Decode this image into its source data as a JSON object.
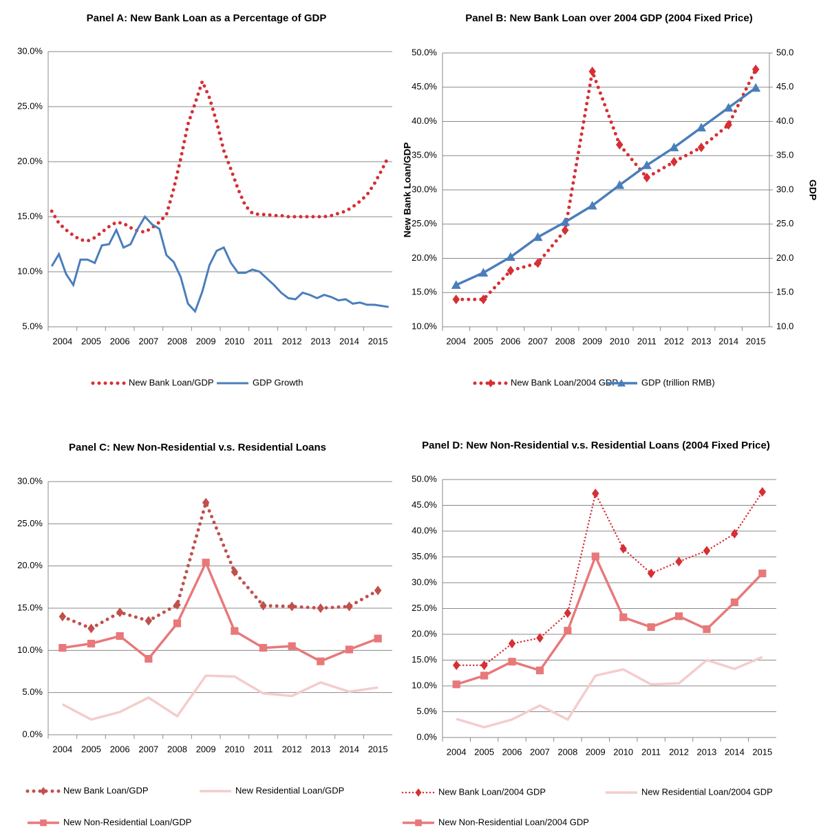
{
  "chart_data": [
    {
      "type": "line",
      "title": "Panel A: New Bank Loan as a Percentage of GDP",
      "categories": [
        "2004",
        null,
        null,
        null,
        "2005",
        null,
        null,
        null,
        "2006",
        null,
        null,
        null,
        "2007",
        null,
        null,
        null,
        "2008",
        null,
        null,
        null,
        "2009",
        null,
        null,
        null,
        "2010",
        null,
        null,
        null,
        "2011",
        null,
        null,
        null,
        "2012",
        null,
        null,
        null,
        "2013",
        null,
        null,
        null,
        "2014",
        null,
        null,
        null,
        "2015",
        null,
        null,
        null
      ],
      "series": [
        {
          "name": "New Bank Loan/GDP",
          "color": "#d62f35",
          "style": "dots",
          "marker": "none",
          "values": [
            15.5,
            14.4,
            13.8,
            13.3,
            12.9,
            12.8,
            13.1,
            13.6,
            14.1,
            14.5,
            14.4,
            14.0,
            13.7,
            13.6,
            14.0,
            14.5,
            15.2,
            17.5,
            20.3,
            23.4,
            25.3,
            27.3,
            25.8,
            23.6,
            21.0,
            19.3,
            17.5,
            16.0,
            15.3,
            15.2,
            15.2,
            15.1,
            15.1,
            15.0,
            15.0,
            15.0,
            15.0,
            15.0,
            15.0,
            15.1,
            15.3,
            15.5,
            15.9,
            16.4,
            17.0,
            18.0,
            19.2,
            20.5
          ]
        },
        {
          "name": "GDP Growth",
          "color": "#4a7ebb",
          "style": "solid",
          "marker": "none",
          "values": [
            10.5,
            11.6,
            9.8,
            8.8,
            11.1,
            11.1,
            10.8,
            12.4,
            12.5,
            13.8,
            12.2,
            12.5,
            13.9,
            15.0,
            14.3,
            13.9,
            11.5,
            10.9,
            9.5,
            7.1,
            6.4,
            8.2,
            10.6,
            11.9,
            12.2,
            10.8,
            9.9,
            9.9,
            10.2,
            10.0,
            9.4,
            8.8,
            8.1,
            7.6,
            7.5,
            8.1,
            7.9,
            7.6,
            7.9,
            7.7,
            7.4,
            7.5,
            7.1,
            7.2,
            7.0,
            7.0,
            6.9,
            6.8
          ]
        }
      ],
      "ylim": [
        5,
        30
      ],
      "yticks": [
        {
          "value": 5,
          "label": "5.0%"
        },
        {
          "value": 10,
          "label": "10.0%"
        },
        {
          "value": 15,
          "label": "15.0%"
        },
        {
          "value": 20,
          "label": "20.0%"
        },
        {
          "value": 25,
          "label": "25.0%"
        },
        {
          "value": 30,
          "label": "30.0%"
        }
      ],
      "grid": true,
      "legend": "bottom"
    },
    {
      "type": "line",
      "title": "Panel B: New Bank Loan over 2004 GDP (2004 Fixed Price)",
      "ylabel": "New Bank Loan/GDP",
      "y2label": "GDP",
      "categories": [
        "2004",
        "2005",
        "2006",
        "2007",
        "2008",
        "2009",
        "2010",
        "2011",
        "2012",
        "2013",
        "2014",
        "2015"
      ],
      "series": [
        {
          "name": "New Bank Loan/2004 GDP",
          "color": "#d62f35",
          "style": "dots",
          "marker": "diamond",
          "values": [
            14.0,
            14.0,
            18.2,
            19.3,
            24.1,
            47.3,
            36.6,
            31.8,
            34.1,
            36.2,
            39.5,
            47.6
          ]
        },
        {
          "name": "GDP (trillion RMB)",
          "color": "#4a7ebb",
          "style": "thick",
          "marker": "triangle",
          "axis": "y2",
          "values": [
            16.1,
            17.9,
            20.2,
            23.1,
            25.3,
            27.7,
            30.7,
            33.6,
            36.2,
            39.1,
            42.0,
            44.9
          ]
        }
      ],
      "ylim": [
        10,
        50
      ],
      "yticks": [
        {
          "value": 10,
          "label": "10.0%"
        },
        {
          "value": 15,
          "label": "15.0%"
        },
        {
          "value": 20,
          "label": "20.0%"
        },
        {
          "value": 25,
          "label": "25.0%"
        },
        {
          "value": 30,
          "label": "30.0%"
        },
        {
          "value": 35,
          "label": "35.0%"
        },
        {
          "value": 40,
          "label": "40.0%"
        },
        {
          "value": 45,
          "label": "45.0%"
        },
        {
          "value": 50,
          "label": "50.0%"
        }
      ],
      "y2lim": [
        10,
        50
      ],
      "y2ticks": [
        {
          "value": 10,
          "label": "10.0"
        },
        {
          "value": 15,
          "label": "15.0"
        },
        {
          "value": 20,
          "label": "20.0"
        },
        {
          "value": 25,
          "label": "25.0"
        },
        {
          "value": 30,
          "label": "30.0"
        },
        {
          "value": 35,
          "label": "35.0"
        },
        {
          "value": 40,
          "label": "40.0"
        },
        {
          "value": 45,
          "label": "45.0"
        },
        {
          "value": 50,
          "label": "50.0"
        }
      ],
      "grid": true,
      "legend": "bottom"
    },
    {
      "type": "line",
      "title": "Panel C: New Non-Residential v.s. Residential Loans",
      "categories": [
        "2004",
        "2005",
        "2006",
        "2007",
        "2008",
        "2009",
        "2010",
        "2011",
        "2012",
        "2013",
        "2014",
        "2015"
      ],
      "series": [
        {
          "name": "New Bank Loan/GDP",
          "color": "#c0504d",
          "style": "dots",
          "marker": "diamond",
          "values": [
            14.0,
            12.6,
            14.5,
            13.5,
            15.4,
            27.5,
            19.3,
            15.3,
            15.2,
            15.0,
            15.2,
            17.1
          ]
        },
        {
          "name": "New Residential Loan/GDP",
          "color": "#f4cccc",
          "style": "thick",
          "marker": "none",
          "values": [
            3.6,
            1.8,
            2.7,
            4.4,
            2.2,
            7.0,
            6.9,
            4.9,
            4.6,
            6.2,
            5.1,
            5.6
          ]
        },
        {
          "name": "New Non-Residential Loan/GDP",
          "color": "#e8787a",
          "style": "thick",
          "marker": "square",
          "values": [
            10.3,
            10.8,
            11.7,
            9.0,
            13.2,
            20.4,
            12.3,
            10.3,
            10.5,
            8.7,
            10.1,
            11.4
          ]
        }
      ],
      "ylim": [
        0,
        30
      ],
      "yticks": [
        {
          "value": 0,
          "label": "0.0%"
        },
        {
          "value": 5,
          "label": "5.0%"
        },
        {
          "value": 10,
          "label": "10.0%"
        },
        {
          "value": 15,
          "label": "15.0%"
        },
        {
          "value": 20,
          "label": "20.0%"
        },
        {
          "value": 25,
          "label": "25.0%"
        },
        {
          "value": 30,
          "label": "30.0%"
        }
      ],
      "grid": true,
      "legend": "bottom"
    },
    {
      "type": "line",
      "title": "Panel D: New Non-Residential v.s. Residential Loans (2004 Fixed Price)",
      "categories": [
        "2004",
        "2005",
        "2006",
        "2007",
        "2008",
        "2009",
        "2010",
        "2011",
        "2012",
        "2013",
        "2014",
        "2015"
      ],
      "series": [
        {
          "name": "New Bank Loan/2004 GDP",
          "color": "#d62f35",
          "style": "fine",
          "marker": "diamond",
          "values": [
            14.0,
            14.0,
            18.2,
            19.3,
            24.1,
            47.3,
            36.6,
            31.8,
            34.1,
            36.2,
            39.5,
            47.6
          ]
        },
        {
          "name": "New Residential Loan/2004 GDP",
          "color": "#f4cccc",
          "style": "thick",
          "marker": "none",
          "values": [
            3.6,
            2.0,
            3.5,
            6.2,
            3.5,
            12.0,
            13.2,
            10.3,
            10.5,
            15.0,
            13.3,
            15.6
          ]
        },
        {
          "name": "New Non-Residential Loan/2004 GDP",
          "color": "#e8787a",
          "style": "thick",
          "marker": "square",
          "values": [
            10.3,
            12.0,
            14.7,
            13.0,
            20.7,
            35.1,
            23.3,
            21.4,
            23.5,
            21.0,
            26.2,
            31.8
          ]
        }
      ],
      "ylim": [
        0,
        50
      ],
      "yticks": [
        {
          "value": 0,
          "label": "0.0%"
        },
        {
          "value": 5,
          "label": "5.0%"
        },
        {
          "value": 10,
          "label": "10.0%"
        },
        {
          "value": 15,
          "label": "15.0%"
        },
        {
          "value": 20,
          "label": "20.0%"
        },
        {
          "value": 25,
          "label": "25.0%"
        },
        {
          "value": 30,
          "label": "30.0%"
        },
        {
          "value": 35,
          "label": "35.0%"
        },
        {
          "value": 40,
          "label": "40.0%"
        },
        {
          "value": 45,
          "label": "45.0%"
        },
        {
          "value": 50,
          "label": "50.0%"
        }
      ],
      "grid": true,
      "legend": "bottom"
    }
  ]
}
